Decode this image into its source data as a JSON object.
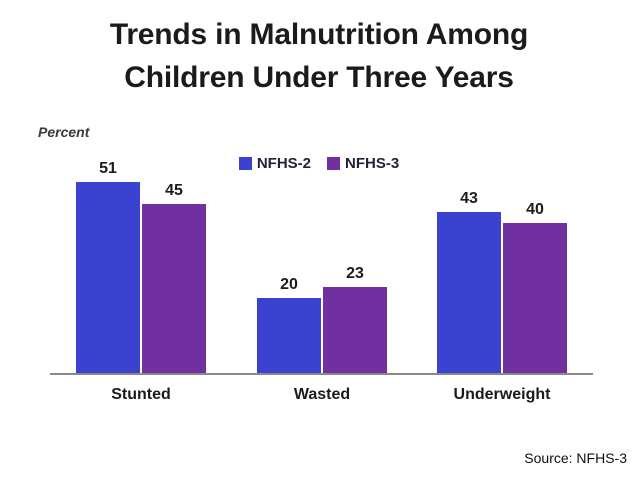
{
  "slide": {
    "title_line1": "Trends in Malnutrition Among",
    "title_line2": "Children Under Three Years",
    "source": "Source: NFHS-3"
  },
  "chart_data": {
    "type": "bar",
    "title": "Trends in Malnutrition Among Children Under Three Years",
    "ylabel": "Percent",
    "xlabel": "",
    "categories": [
      "Stunted",
      "Wasted",
      "Underweight"
    ],
    "series": [
      {
        "name": "NFHS-2",
        "color": "#3A42CF",
        "values": [
          51,
          20,
          43
        ]
      },
      {
        "name": "NFHS-3",
        "color": "#7030A0",
        "values": [
          45,
          23,
          40
        ]
      }
    ],
    "value_labels_shown": true,
    "legend_position": "top-center",
    "ylim": [
      0,
      55
    ],
    "grid": false,
    "axis_line_color": "#898989"
  }
}
